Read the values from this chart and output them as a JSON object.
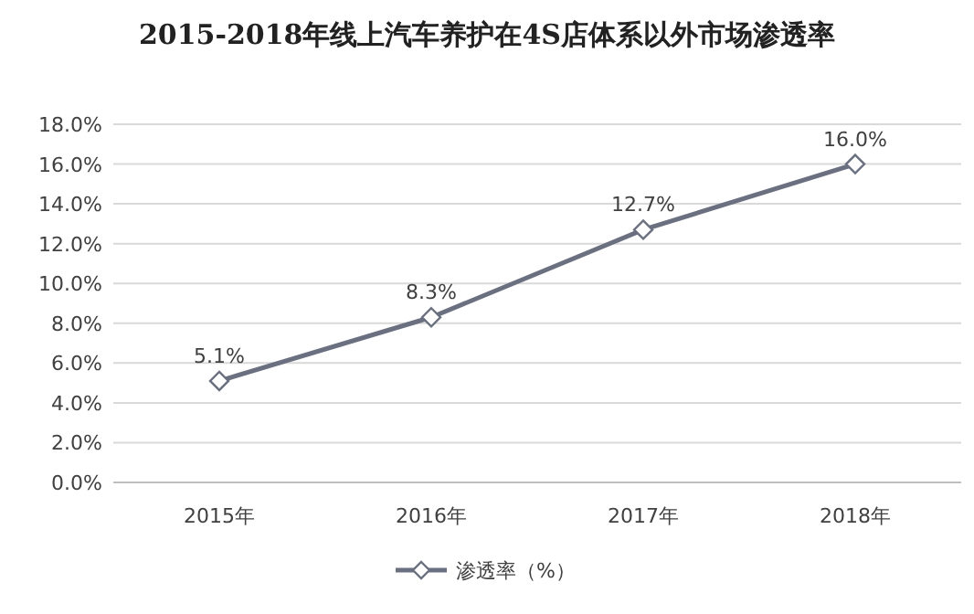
{
  "chart_data": {
    "type": "line",
    "title": "2015-2018年线上汽车养护在4S店体系以外市场渗透率",
    "categories": [
      "2015年",
      "2016年",
      "2017年",
      "2018年"
    ],
    "series": [
      {
        "name": "渗透率（%）",
        "color": "#6b7080",
        "values": [
          5.1,
          8.3,
          12.7,
          16.0
        ],
        "value_labels": [
          "5.1%",
          "8.3%",
          "12.7%",
          "16.0%"
        ]
      }
    ],
    "ylim": [
      0,
      18
    ],
    "yticks": [
      {
        "value": 0,
        "label": "0.0%"
      },
      {
        "value": 2,
        "label": "2.0%"
      },
      {
        "value": 4,
        "label": "4.0%"
      },
      {
        "value": 6,
        "label": "6.0%"
      },
      {
        "value": 8,
        "label": "8.0%"
      },
      {
        "value": 10,
        "label": "10.0%"
      },
      {
        "value": 12,
        "label": "12.0%"
      },
      {
        "value": 14,
        "label": "14.0%"
      },
      {
        "value": 16,
        "label": "16.0%"
      },
      {
        "value": 18,
        "label": "18.0%"
      }
    ],
    "grid": "y",
    "legend": "bottom",
    "marker": "diamond",
    "line_style": "solid"
  }
}
